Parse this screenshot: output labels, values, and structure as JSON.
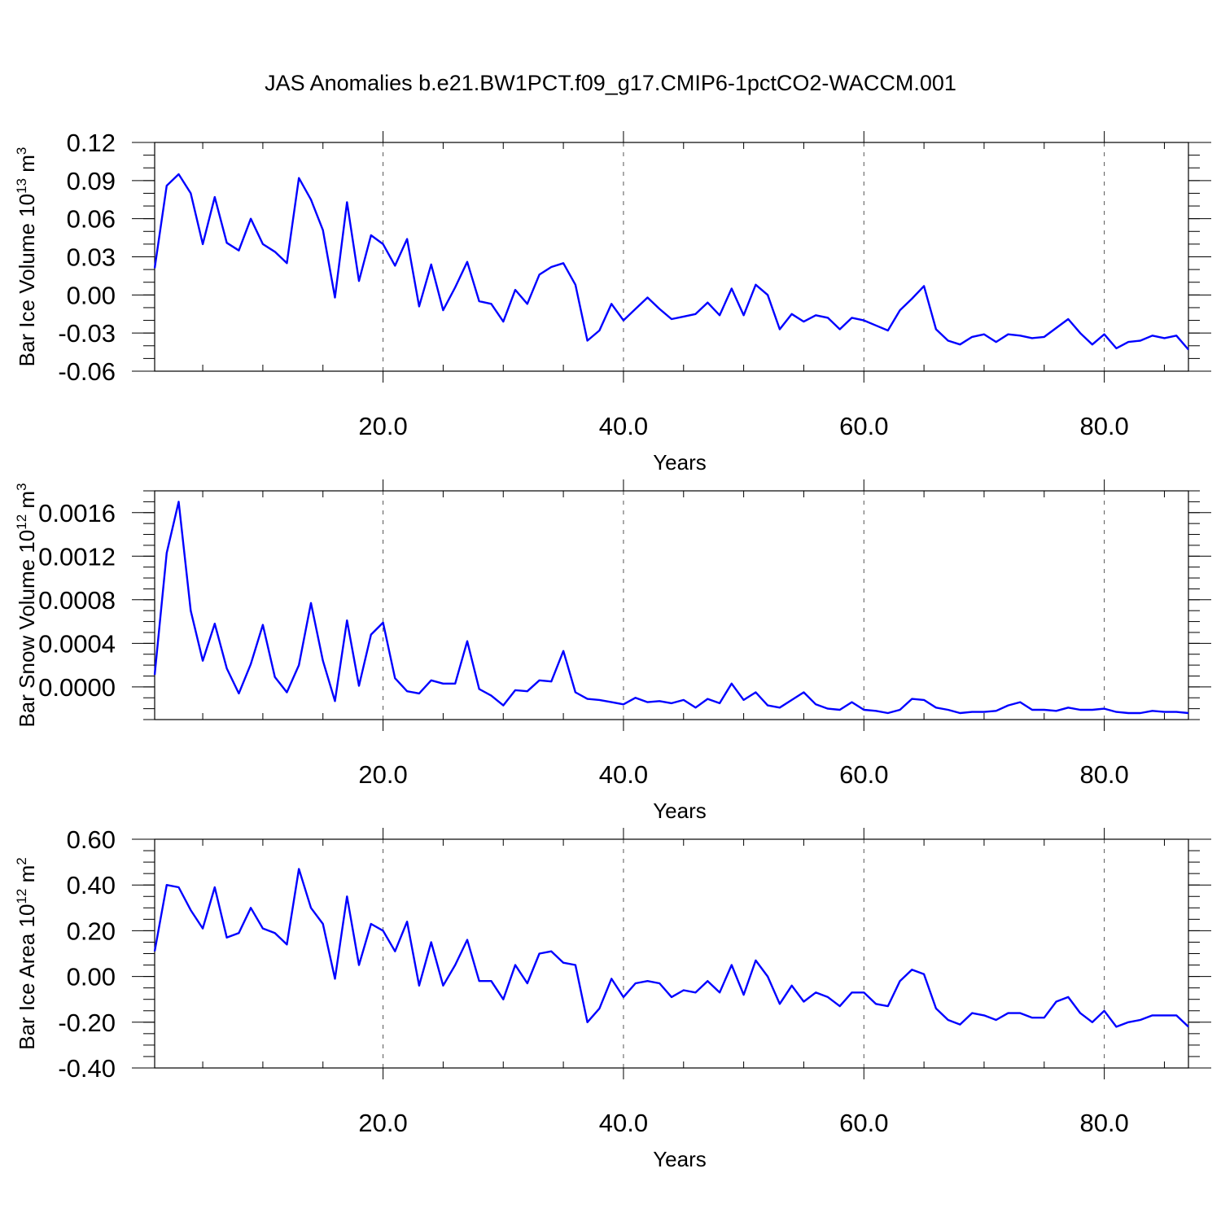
{
  "title": "JAS Anomalies b.e21.BW1PCT.f09_g17.CMIP6-1pctCO2-WACCM.001",
  "line_color": "#0000ff",
  "chart_data": [
    {
      "type": "line",
      "name": "ice-volume",
      "ylabel": "Bar Ice Volume 10",
      "ylabel_exp": "13",
      "ylabel_unit": " m",
      "ylabel_unit_exp": "3",
      "xlabel": "Years",
      "xlim": [
        1,
        87
      ],
      "ylim": [
        -0.06,
        0.12
      ],
      "x_ticks": [
        20,
        40,
        60,
        80
      ],
      "x_tick_labels": [
        "20.0",
        "40.0",
        "60.0",
        "80.0"
      ],
      "y_ticks": [
        -0.06,
        -0.03,
        0.0,
        0.03,
        0.06,
        0.09,
        0.12
      ],
      "y_tick_labels": [
        "-0.06",
        "-0.03",
        "0.00",
        "0.03",
        "0.06",
        "0.09",
        "0.12"
      ],
      "y_minor_step": 0.01,
      "x_minor_step": 5,
      "grid": "x-dashed",
      "x": [
        1,
        2,
        3,
        4,
        5,
        6,
        7,
        8,
        9,
        10,
        11,
        12,
        13,
        14,
        15,
        16,
        17,
        18,
        19,
        20,
        21,
        22,
        23,
        24,
        25,
        26,
        27,
        28,
        29,
        30,
        31,
        32,
        33,
        34,
        35,
        36,
        37,
        38,
        39,
        40,
        41,
        42,
        43,
        44,
        45,
        46,
        47,
        48,
        49,
        50,
        51,
        52,
        53,
        54,
        55,
        56,
        57,
        58,
        59,
        60,
        61,
        62,
        63,
        64,
        65,
        66,
        67,
        68,
        69,
        70,
        71,
        72,
        73,
        74,
        75,
        76,
        77,
        78,
        79,
        80,
        81,
        82,
        83,
        84,
        85,
        86,
        87
      ],
      "values": [
        0.021,
        0.086,
        0.095,
        0.08,
        0.04,
        0.077,
        0.041,
        0.035,
        0.06,
        0.04,
        0.034,
        0.025,
        0.092,
        0.075,
        0.051,
        -0.002,
        0.073,
        0.011,
        0.047,
        0.04,
        0.023,
        0.044,
        -0.009,
        0.024,
        -0.012,
        0.006,
        0.026,
        -0.005,
        -0.007,
        -0.021,
        0.004,
        -0.007,
        0.016,
        0.022,
        0.025,
        0.008,
        -0.036,
        -0.028,
        -0.007,
        -0.02,
        -0.011,
        -0.002,
        -0.011,
        -0.019,
        -0.017,
        -0.015,
        -0.006,
        -0.016,
        0.005,
        -0.016,
        0.008,
        0.0,
        -0.027,
        -0.015,
        -0.021,
        -0.016,
        -0.018,
        -0.027,
        -0.018,
        -0.02,
        -0.024,
        -0.028,
        -0.012,
        -0.003,
        0.007,
        -0.027,
        -0.036,
        -0.039,
        -0.033,
        -0.031,
        -0.037,
        -0.031,
        -0.032,
        -0.034,
        -0.033,
        -0.026,
        -0.019,
        -0.03,
        -0.039,
        -0.031,
        -0.042,
        -0.037,
        -0.036,
        -0.032,
        -0.034,
        -0.032,
        -0.043
      ]
    },
    {
      "type": "line",
      "name": "snow-volume",
      "ylabel": "Bar Snow Volume 10",
      "ylabel_exp": "12",
      "ylabel_unit": " m",
      "ylabel_unit_exp": "3",
      "xlabel": "Years",
      "xlim": [
        1,
        87
      ],
      "ylim": [
        -0.0003,
        0.0018
      ],
      "x_ticks": [
        20,
        40,
        60,
        80
      ],
      "x_tick_labels": [
        "20.0",
        "40.0",
        "60.0",
        "80.0"
      ],
      "y_ticks": [
        0.0,
        0.0004,
        0.0008,
        0.0012,
        0.0016
      ],
      "y_tick_labels": [
        "0.0000",
        "0.0004",
        "0.0008",
        "0.0012",
        "0.0016"
      ],
      "y_minor_step": 0.0001,
      "x_minor_step": 5,
      "grid": "x-dashed",
      "x": [
        1,
        2,
        3,
        4,
        5,
        6,
        7,
        8,
        9,
        10,
        11,
        12,
        13,
        14,
        15,
        16,
        17,
        18,
        19,
        20,
        21,
        22,
        23,
        24,
        25,
        26,
        27,
        28,
        29,
        30,
        31,
        32,
        33,
        34,
        35,
        36,
        37,
        38,
        39,
        40,
        41,
        42,
        43,
        44,
        45,
        46,
        47,
        48,
        49,
        50,
        51,
        52,
        53,
        54,
        55,
        56,
        57,
        58,
        59,
        60,
        61,
        62,
        63,
        64,
        65,
        66,
        67,
        68,
        69,
        70,
        71,
        72,
        73,
        74,
        75,
        76,
        77,
        78,
        79,
        80,
        81,
        82,
        83,
        84,
        85,
        86,
        87
      ],
      "values": [
        0.00011,
        0.00123,
        0.0017,
        0.0007,
        0.00024,
        0.00058,
        0.00017,
        -6e-05,
        0.00021,
        0.00057,
        9e-05,
        -5e-05,
        0.0002,
        0.00077,
        0.00024,
        -0.00013,
        0.00061,
        1e-05,
        0.00048,
        0.00059,
        8e-05,
        -4e-05,
        -6e-05,
        6e-05,
        3e-05,
        3e-05,
        0.00042,
        -2e-05,
        -8e-05,
        -0.00017,
        -3e-05,
        -4e-05,
        6e-05,
        5e-05,
        0.00033,
        -5e-05,
        -0.00011,
        -0.00012,
        -0.00014,
        -0.00016,
        -0.0001,
        -0.00014,
        -0.00013,
        -0.00015,
        -0.00012,
        -0.00019,
        -0.00011,
        -0.00015,
        3e-05,
        -0.00012,
        -5e-05,
        -0.00017,
        -0.00019,
        -0.00012,
        -5e-05,
        -0.00016,
        -0.0002,
        -0.00021,
        -0.00014,
        -0.00021,
        -0.00022,
        -0.00024,
        -0.00021,
        -0.00011,
        -0.00012,
        -0.00019,
        -0.00021,
        -0.00024,
        -0.00023,
        -0.00023,
        -0.00022,
        -0.00017,
        -0.00014,
        -0.00021,
        -0.00021,
        -0.00022,
        -0.00019,
        -0.00021,
        -0.00021,
        -0.0002,
        -0.00023,
        -0.00024,
        -0.00024,
        -0.00022,
        -0.00023,
        -0.00023,
        -0.00024
      ]
    },
    {
      "type": "line",
      "name": "ice-area",
      "ylabel": "Bar Ice Area 10",
      "ylabel_exp": "12",
      "ylabel_unit": " m",
      "ylabel_unit_exp": "2",
      "xlabel": "Years",
      "xlim": [
        1,
        87
      ],
      "ylim": [
        -0.4,
        0.6
      ],
      "x_ticks": [
        20,
        40,
        60,
        80
      ],
      "x_tick_labels": [
        "20.0",
        "40.0",
        "60.0",
        "80.0"
      ],
      "y_ticks": [
        -0.4,
        -0.2,
        0.0,
        0.2,
        0.4,
        0.6
      ],
      "y_tick_labels": [
        "-0.40",
        "-0.20",
        "0.00",
        "0.20",
        "0.40",
        "0.60"
      ],
      "y_minor_step": 0.05,
      "x_minor_step": 5,
      "grid": "x-dashed",
      "x": [
        1,
        2,
        3,
        4,
        5,
        6,
        7,
        8,
        9,
        10,
        11,
        12,
        13,
        14,
        15,
        16,
        17,
        18,
        19,
        20,
        21,
        22,
        23,
        24,
        25,
        26,
        27,
        28,
        29,
        30,
        31,
        32,
        33,
        34,
        35,
        36,
        37,
        38,
        39,
        40,
        41,
        42,
        43,
        44,
        45,
        46,
        47,
        48,
        49,
        50,
        51,
        52,
        53,
        54,
        55,
        56,
        57,
        58,
        59,
        60,
        61,
        62,
        63,
        64,
        65,
        66,
        67,
        68,
        69,
        70,
        71,
        72,
        73,
        74,
        75,
        76,
        77,
        78,
        79,
        80,
        81,
        82,
        83,
        84,
        85,
        86,
        87
      ],
      "values": [
        0.11,
        0.4,
        0.39,
        0.29,
        0.21,
        0.39,
        0.17,
        0.19,
        0.3,
        0.21,
        0.19,
        0.14,
        0.47,
        0.3,
        0.23,
        -0.01,
        0.35,
        0.05,
        0.23,
        0.2,
        0.11,
        0.24,
        -0.04,
        0.15,
        -0.04,
        0.05,
        0.16,
        -0.02,
        -0.02,
        -0.1,
        0.05,
        -0.03,
        0.1,
        0.11,
        0.06,
        0.05,
        -0.2,
        -0.14,
        -0.01,
        -0.09,
        -0.03,
        -0.02,
        -0.03,
        -0.09,
        -0.06,
        -0.07,
        -0.02,
        -0.07,
        0.05,
        -0.08,
        0.07,
        0.0,
        -0.12,
        -0.04,
        -0.11,
        -0.07,
        -0.09,
        -0.13,
        -0.07,
        -0.07,
        -0.12,
        -0.13,
        -0.02,
        0.03,
        0.01,
        -0.14,
        -0.19,
        -0.21,
        -0.16,
        -0.17,
        -0.19,
        -0.16,
        -0.16,
        -0.18,
        -0.18,
        -0.11,
        -0.09,
        -0.16,
        -0.2,
        -0.15,
        -0.22,
        -0.2,
        -0.19,
        -0.17,
        -0.17,
        -0.17,
        -0.22
      ]
    }
  ]
}
